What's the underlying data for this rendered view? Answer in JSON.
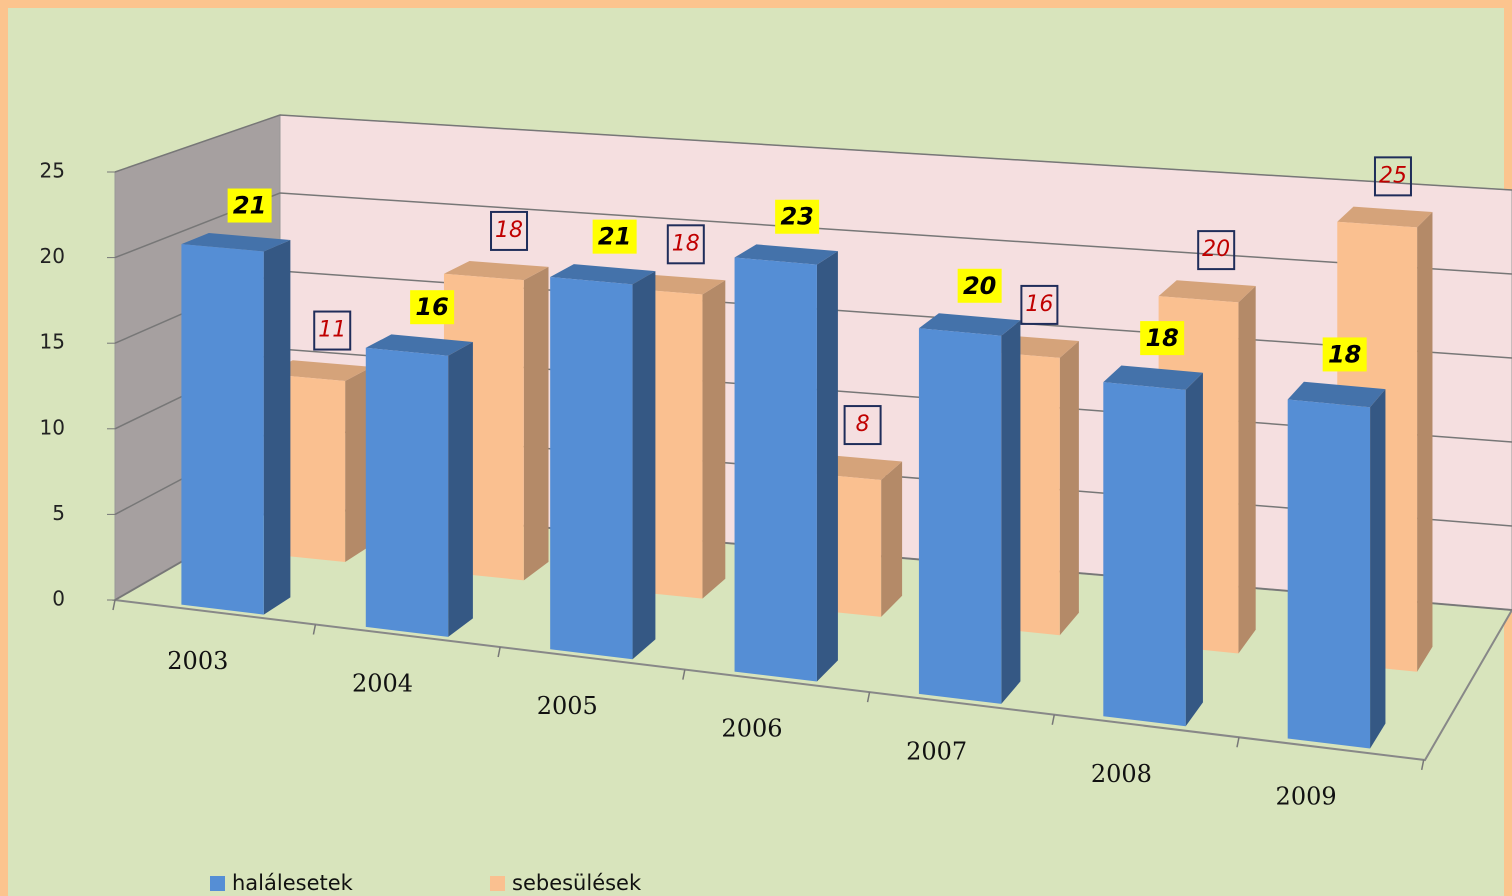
{
  "chart_data": {
    "type": "bar3d",
    "categories": [
      "2003",
      "2004",
      "2005",
      "2006",
      "2007",
      "2008",
      "2009"
    ],
    "series": [
      {
        "name": "halálesetek",
        "color": "#558ed5",
        "values": [
          21,
          16,
          21,
          23,
          20,
          18,
          18
        ]
      },
      {
        "name": "sebesülések",
        "color": "#fac090",
        "values": [
          11,
          18,
          18,
          8,
          16,
          20,
          25
        ]
      }
    ],
    "ylim": [
      0,
      25
    ],
    "yticks": [
      0,
      5,
      10,
      15,
      20,
      25
    ],
    "grid": true,
    "legend": "bottom"
  }
}
